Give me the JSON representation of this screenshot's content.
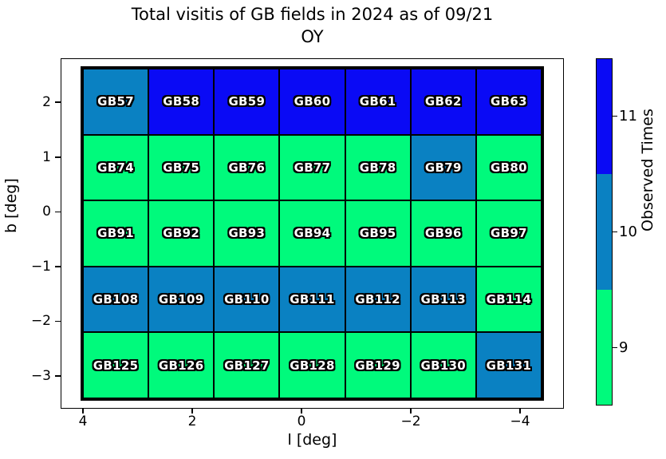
{
  "title": {
    "line1": "Total visitis of GB fields in 2024 as of 09/21",
    "line2": "OY"
  },
  "axes": {
    "xlabel": "l [deg]",
    "ylabel": "b [deg]",
    "x_tick_labels": [
      "4",
      "2",
      "0",
      "−2",
      "−4"
    ],
    "y_tick_labels": [
      "2",
      "1",
      "0",
      "−1",
      "−2",
      "−3"
    ]
  },
  "colorbar": {
    "label": "Observed Times",
    "tick_labels": [
      "11",
      "10",
      "9"
    ],
    "segment_colors_top_to_bottom": [
      "#0a0af5",
      "#0a81c2",
      "#00fa7c"
    ]
  },
  "chart_data": {
    "type": "heatmap",
    "title": "Total visitis of GB fields in 2024 as of 09/21 OY",
    "xlabel": "l [deg]",
    "ylabel": "b [deg]",
    "colorbar_label": "Observed Times",
    "x_axis_inverted": true,
    "x_tick_values": [
      4,
      2,
      0,
      -2,
      -4
    ],
    "y_tick_values": [
      2,
      1,
      0,
      -1,
      -2,
      -3
    ],
    "value_colors": {
      "9": "#00fa7c",
      "10": "#0a81c2",
      "11": "#0a0af5"
    },
    "colorbar_ticks": [
      11,
      10,
      9
    ],
    "rows": [
      {
        "cells": [
          {
            "name": "GB57",
            "value": 10
          },
          {
            "name": "GB58",
            "value": 11
          },
          {
            "name": "GB59",
            "value": 11
          },
          {
            "name": "GB60",
            "value": 11
          },
          {
            "name": "GB61",
            "value": 11
          },
          {
            "name": "GB62",
            "value": 11
          },
          {
            "name": "GB63",
            "value": 11
          }
        ]
      },
      {
        "cells": [
          {
            "name": "GB74",
            "value": 9
          },
          {
            "name": "GB75",
            "value": 9
          },
          {
            "name": "GB76",
            "value": 9
          },
          {
            "name": "GB77",
            "value": 9
          },
          {
            "name": "GB78",
            "value": 9
          },
          {
            "name": "GB79",
            "value": 10
          },
          {
            "name": "GB80",
            "value": 9
          }
        ]
      },
      {
        "cells": [
          {
            "name": "GB91",
            "value": 9
          },
          {
            "name": "GB92",
            "value": 9
          },
          {
            "name": "GB93",
            "value": 9
          },
          {
            "name": "GB94",
            "value": 9
          },
          {
            "name": "GB95",
            "value": 9
          },
          {
            "name": "GB96",
            "value": 9
          },
          {
            "name": "GB97",
            "value": 9
          }
        ]
      },
      {
        "cells": [
          {
            "name": "GB108",
            "value": 10
          },
          {
            "name": "GB109",
            "value": 10
          },
          {
            "name": "GB110",
            "value": 10
          },
          {
            "name": "GB111",
            "value": 10
          },
          {
            "name": "GB112",
            "value": 10
          },
          {
            "name": "GB113",
            "value": 10
          },
          {
            "name": "GB114",
            "value": 9
          }
        ]
      },
      {
        "cells": [
          {
            "name": "GB125",
            "value": 9
          },
          {
            "name": "GB126",
            "value": 9
          },
          {
            "name": "GB127",
            "value": 9
          },
          {
            "name": "GB128",
            "value": 9
          },
          {
            "name": "GB129",
            "value": 9
          },
          {
            "name": "GB130",
            "value": 9
          },
          {
            "name": "GB131",
            "value": 10
          }
        ]
      }
    ]
  }
}
